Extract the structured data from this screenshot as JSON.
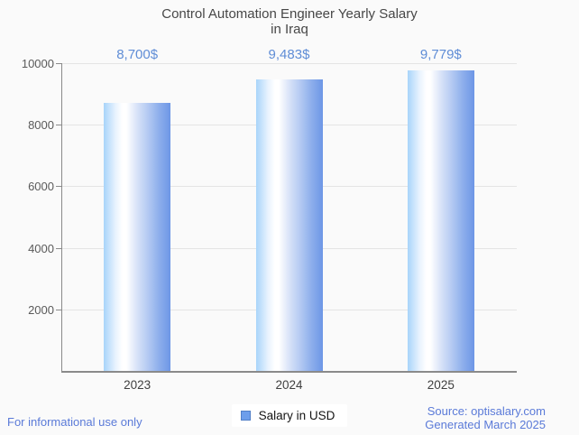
{
  "header": {
    "title_line1": "Control Automation Engineer Yearly Salary",
    "title_line2": "in Iraq"
  },
  "chart_data": {
    "type": "bar",
    "title": "Control Automation Engineer Yearly Salary in Iraq",
    "categories": [
      "2023",
      "2024",
      "2025"
    ],
    "series": [
      {
        "name": "Salary in USD",
        "values": [
          8700,
          9483,
          9779
        ],
        "value_labels": [
          "8,700$",
          "9,483$",
          "9,779$"
        ]
      }
    ],
    "xlabel": "",
    "ylabel": "",
    "ylim": [
      0,
      10000
    ],
    "yticks": [
      2000,
      4000,
      6000,
      8000,
      10000
    ],
    "grid": true,
    "legend_position": "bottom"
  },
  "legend": {
    "label": "Salary in USD"
  },
  "footer": {
    "disclaimer": "For informational use only",
    "source": "Source: optisalary.com",
    "generated": "Generated March 2025"
  },
  "colors": {
    "background": "#fafafa",
    "bar_gradient_left": "#a8d4fa",
    "bar_gradient_mid": "#ffffff",
    "bar_gradient_right": "#6d96e6",
    "value_label_blue": "#5f8dd6",
    "footer_blue": "#5a7ad8",
    "legend_swatch": "#6d9eeb",
    "axis_gray": "#8a8a8a",
    "grid_gray": "#e4e4e4"
  }
}
